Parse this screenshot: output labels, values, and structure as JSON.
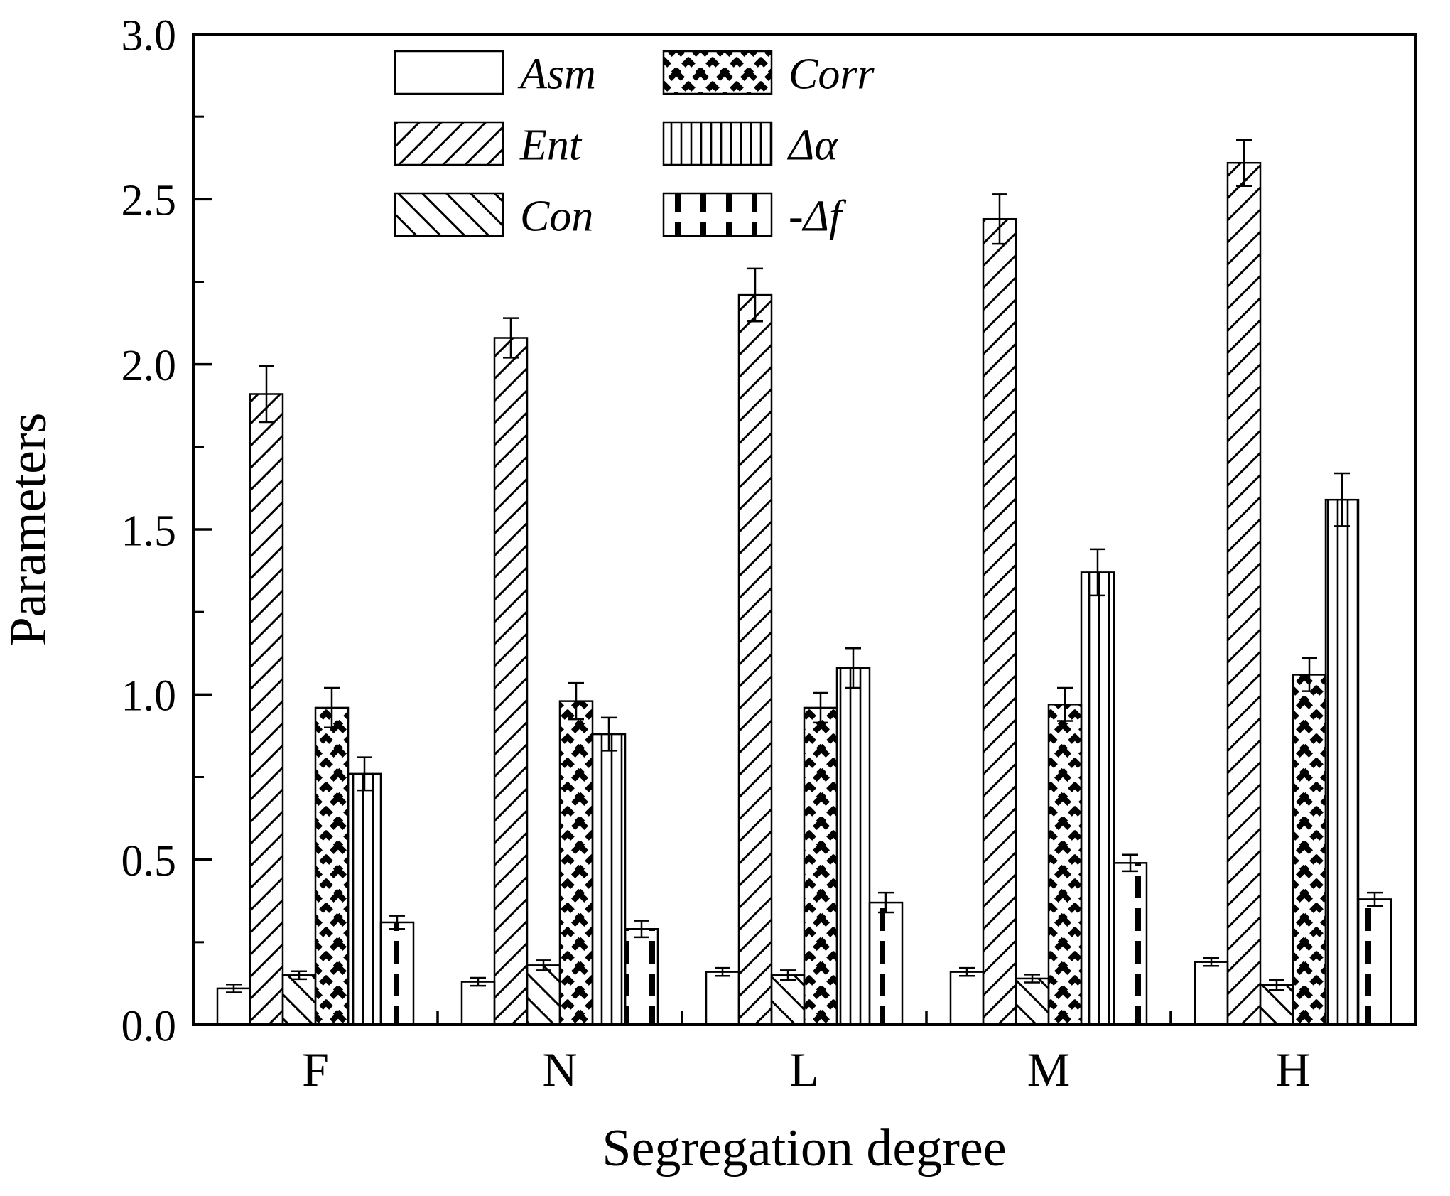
{
  "chart_data": {
    "type": "bar",
    "title": "",
    "xlabel": "Segregation degree",
    "ylabel": "Parameters",
    "ylim": [
      0,
      3
    ],
    "yticks": [
      0.0,
      0.5,
      1.0,
      1.5,
      2.0,
      2.5,
      3.0
    ],
    "ytick_labels": [
      "0.0",
      "0.5",
      "1.0",
      "1.5",
      "2.0",
      "2.5",
      "3.0"
    ],
    "minor_tick_step": 0.25,
    "grid": false,
    "legend_position": "top-inside",
    "legend_columns": 2,
    "categories": [
      "F",
      "N",
      "L",
      "M",
      "H"
    ],
    "series": [
      {
        "name": "Asm",
        "hatch": "plain",
        "values": [
          0.11,
          0.13,
          0.16,
          0.16,
          0.19
        ],
        "errors": [
          0.012,
          0.012,
          0.012,
          0.012,
          0.012
        ]
      },
      {
        "name": "Ent",
        "hatch": "diagonal-up",
        "values": [
          1.91,
          2.08,
          2.21,
          2.44,
          2.61
        ],
        "errors": [
          0.085,
          0.06,
          0.08,
          0.075,
          0.07
        ]
      },
      {
        "name": "Con",
        "hatch": "diagonal-down",
        "values": [
          0.15,
          0.18,
          0.15,
          0.14,
          0.12
        ],
        "errors": [
          0.012,
          0.015,
          0.015,
          0.012,
          0.015
        ]
      },
      {
        "name": "Corr",
        "hatch": "crosshatch",
        "values": [
          0.96,
          0.98,
          0.96,
          0.97,
          1.06
        ],
        "errors": [
          0.06,
          0.055,
          0.045,
          0.05,
          0.05
        ]
      },
      {
        "name": "Δα",
        "hatch": "vertical",
        "values": [
          0.76,
          0.88,
          1.08,
          1.37,
          1.59
        ],
        "errors": [
          0.05,
          0.05,
          0.06,
          0.07,
          0.08
        ]
      },
      {
        "name": "-Δf",
        "hatch": "dashed-vertical",
        "values": [
          0.31,
          0.29,
          0.37,
          0.49,
          0.38
        ],
        "errors": [
          0.02,
          0.025,
          0.03,
          0.025,
          0.02
        ]
      }
    ],
    "colors": {
      "bar_fill": "#ffffff",
      "stroke": "#000000",
      "background": "#ffffff"
    }
  }
}
